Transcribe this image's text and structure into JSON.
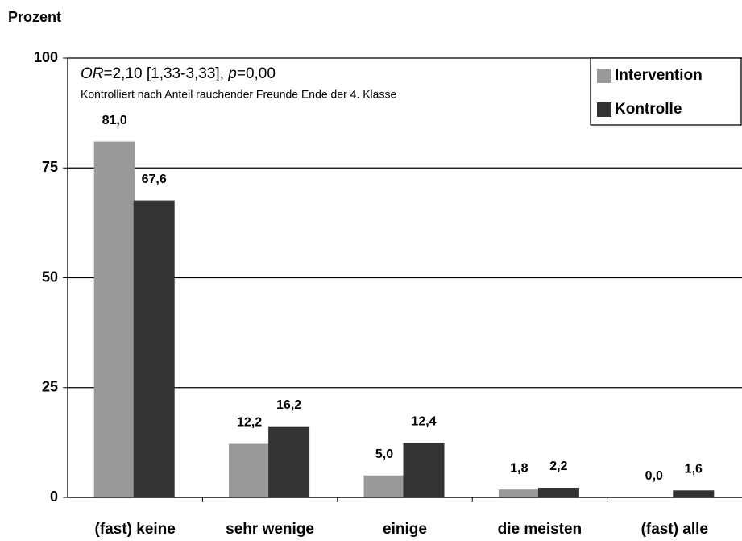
{
  "chart_data": {
    "type": "bar",
    "y_label": "Prozent",
    "annotation": [
      "OR",
      "=2,10 [1,33-3,33], ",
      "p",
      "=0,00"
    ],
    "note": "Kontrolliert nach Anteil rauchender Freunde Ende der 4. Klasse",
    "categories": [
      "(fast) keine",
      "sehr wenige",
      "einige",
      "die meisten",
      "(fast) alle"
    ],
    "series": [
      {
        "name": "Intervention",
        "color": "#999999",
        "values": [
          81.0,
          12.2,
          5.0,
          1.8,
          0.0
        ],
        "value_labels": [
          "81,0",
          "12,2",
          "5,0",
          "1,8",
          "0,0"
        ]
      },
      {
        "name": "Kontrolle",
        "color": "#333333",
        "values": [
          67.6,
          16.2,
          12.4,
          2.2,
          1.6
        ],
        "value_labels": [
          "67,6",
          "16,2",
          "12,4",
          "2,2",
          "1,6"
        ]
      }
    ],
    "ylim": [
      0,
      100
    ],
    "yticks": [
      0,
      25,
      50,
      75,
      100
    ],
    "grid": true,
    "legend": "top-right"
  }
}
